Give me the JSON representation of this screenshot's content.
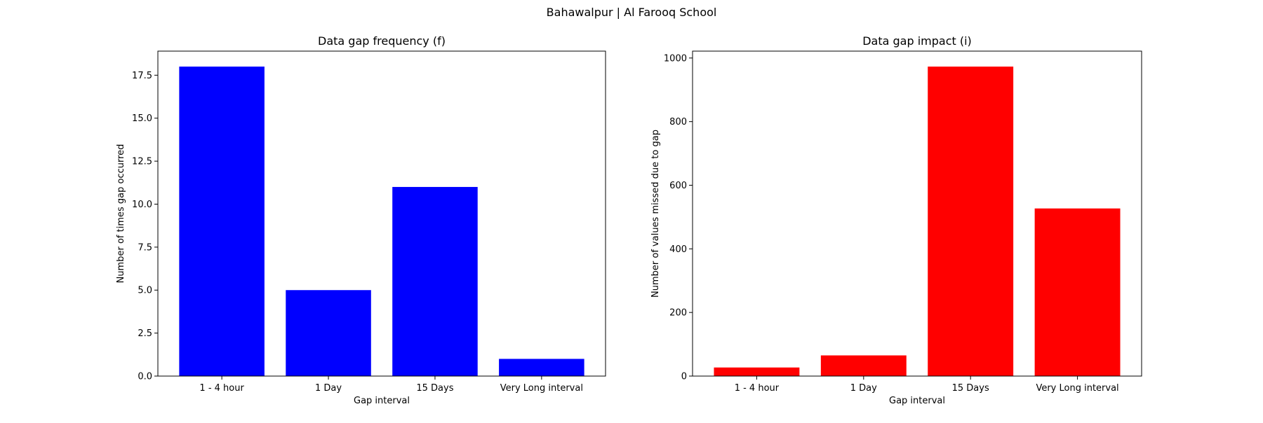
{
  "figure": {
    "suptitle": "Bahawalpur | Al Farooq School"
  },
  "chart_data": [
    {
      "type": "bar",
      "title": "Data gap frequency (f)",
      "xlabel": "Gap interval",
      "ylabel": "Number of times gap occurred",
      "categories": [
        "1 - 4 hour",
        "1 Day",
        "15 Days",
        "Very Long interval"
      ],
      "values": [
        18,
        5,
        11,
        1
      ],
      "ylim": [
        0,
        18.9
      ],
      "yticks": [
        0,
        2.5,
        5,
        7.5,
        10,
        12.5,
        15,
        17.5
      ],
      "ytick_labels": [
        "0.0",
        "2.5",
        "5.0",
        "7.5",
        "10.0",
        "12.5",
        "15.0",
        "17.5"
      ],
      "color": "#0000ff",
      "grid": false
    },
    {
      "type": "bar",
      "title": "Data gap impact (i)",
      "xlabel": "Gap interval",
      "ylabel": "Number of values missed due to gap",
      "categories": [
        "1 - 4 hour",
        "1 Day",
        "15 Days",
        "Very Long interval"
      ],
      "values": [
        27,
        65,
        973,
        527
      ],
      "ylim": [
        0,
        1021.65
      ],
      "yticks": [
        0,
        200,
        400,
        600,
        800,
        1000
      ],
      "ytick_labels": [
        "0",
        "200",
        "400",
        "600",
        "800",
        "1000"
      ],
      "color": "#ff0000",
      "grid": false
    }
  ]
}
